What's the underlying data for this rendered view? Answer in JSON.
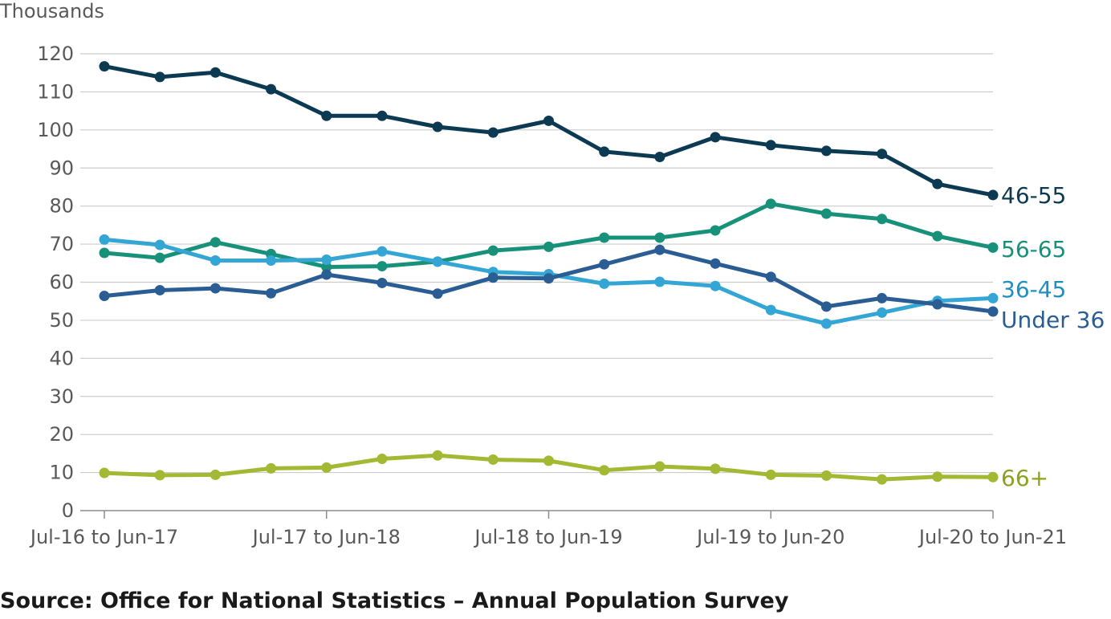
{
  "chart_data": {
    "type": "line",
    "ylabel": "Thousands",
    "ylim": [
      0,
      120
    ],
    "yticks": [
      0,
      10,
      20,
      30,
      40,
      50,
      60,
      70,
      80,
      90,
      100,
      110,
      120
    ],
    "grid": true,
    "categories": [
      "Jul-16 to Jun-17",
      "",
      "",
      "",
      "Jul-17 to Jun-18",
      "",
      "",
      "",
      "Jul-18 to Jun-19",
      "",
      "",
      "",
      "Jul-19 to Jun-20",
      "",
      "",
      "",
      "Jul-20 to Jun-21"
    ],
    "xtick_labels": [
      "Jul-16 to Jun-17",
      "Jul-17 to Jun-18",
      "Jul-18 to Jun-19",
      "Jul-19 to Jun-20",
      "Jul-20 to Jun-21"
    ],
    "series": [
      {
        "name": "46-55",
        "color": "#0b3a52",
        "label_color": "#0b3a52",
        "values": [
          116.7,
          113.9,
          115.1,
          110.7,
          103.7,
          103.7,
          100.8,
          99.3,
          102.4,
          94.3,
          92.9,
          98.1,
          96.0,
          94.5,
          93.7,
          85.8,
          82.9
        ]
      },
      {
        "name": "56-65",
        "color": "#17917a",
        "label_color": "#17917a",
        "values": [
          67.7,
          66.4,
          70.5,
          67.4,
          64.0,
          64.2,
          65.4,
          68.3,
          69.3,
          71.7,
          71.7,
          73.6,
          80.6,
          78.0,
          76.6,
          72.1,
          69.1
        ]
      },
      {
        "name": "36-45",
        "color": "#34a6d6",
        "label_color": "#1f8fc2",
        "values": [
          71.2,
          69.8,
          65.7,
          65.7,
          65.9,
          68.1,
          65.4,
          62.7,
          62.1,
          59.6,
          60.1,
          59.0,
          52.7,
          49.1,
          52.0,
          55.1,
          55.8
        ]
      },
      {
        "name": "Under 36",
        "color": "#2a5d93",
        "label_color": "#2a5d93",
        "values": [
          56.4,
          57.9,
          58.4,
          57.1,
          62.0,
          59.8,
          57.0,
          61.2,
          61.0,
          64.7,
          68.5,
          64.9,
          61.4,
          53.6,
          55.8,
          54.2,
          52.3
        ]
      },
      {
        "name": "66+",
        "color": "#a3b833",
        "label_color": "#8ca11f",
        "values": [
          9.9,
          9.3,
          9.4,
          11.1,
          11.3,
          13.6,
          14.5,
          13.4,
          13.1,
          10.6,
          11.6,
          11.0,
          9.4,
          9.2,
          8.2,
          8.9,
          8.8
        ]
      }
    ]
  },
  "source": "Source: Office for National Statistics – Annual Population Survey"
}
